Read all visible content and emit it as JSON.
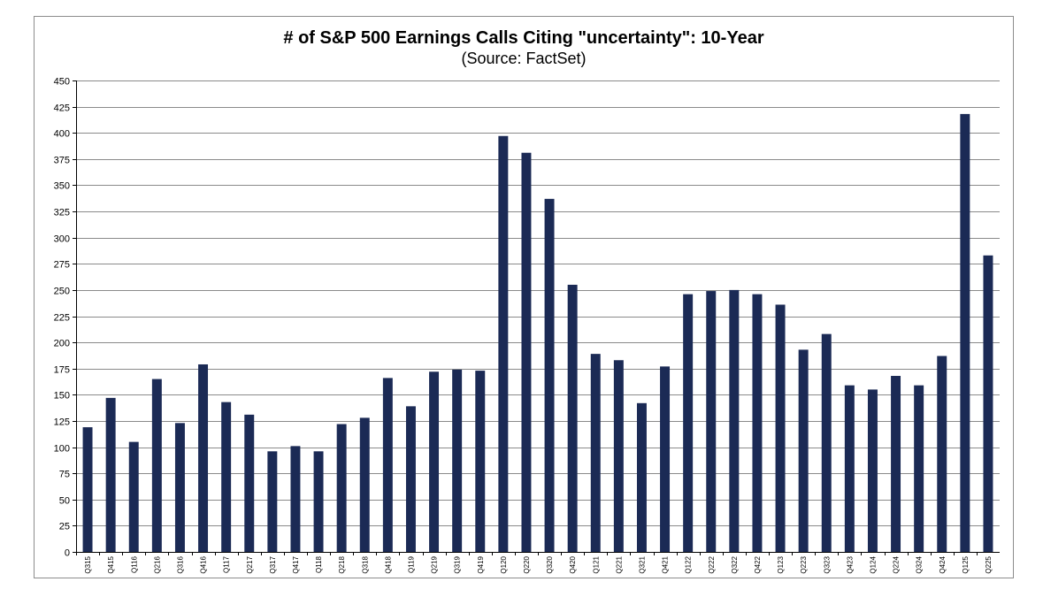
{
  "chart_data": {
    "type": "bar",
    "title": "# of S&P 500 Earnings Calls Citing \"uncertainty\": 10-Year",
    "subtitle": "(Source: FactSet)",
    "xlabel": "",
    "ylabel": "",
    "ylim": [
      0,
      450
    ],
    "yticks": [
      0,
      25,
      50,
      75,
      100,
      125,
      150,
      175,
      200,
      225,
      250,
      275,
      300,
      325,
      350,
      375,
      400,
      425,
      450
    ],
    "grid": true,
    "legend": "none",
    "categories": [
      "Q315",
      "Q415",
      "Q116",
      "Q216",
      "Q316",
      "Q416",
      "Q117",
      "Q217",
      "Q317",
      "Q417",
      "Q118",
      "Q218",
      "Q318",
      "Q418",
      "Q119",
      "Q219",
      "Q319",
      "Q419",
      "Q120",
      "Q220",
      "Q320",
      "Q420",
      "Q121",
      "Q221",
      "Q321",
      "Q421",
      "Q122",
      "Q222",
      "Q322",
      "Q422",
      "Q123",
      "Q223",
      "Q323",
      "Q423",
      "Q124",
      "Q224",
      "Q324",
      "Q424",
      "Q125",
      "Q225"
    ],
    "series": [
      {
        "name": "# of earnings calls citing uncertainty",
        "color": "#1b2a55",
        "values": [
          119,
          147,
          105,
          165,
          123,
          179,
          143,
          131,
          96,
          101,
          96,
          122,
          128,
          166,
          139,
          172,
          174,
          173,
          397,
          381,
          337,
          255,
          189,
          183,
          142,
          177,
          246,
          249,
          250,
          246,
          236,
          193,
          208,
          159,
          155,
          168,
          159,
          187,
          418,
          283
        ]
      }
    ]
  }
}
